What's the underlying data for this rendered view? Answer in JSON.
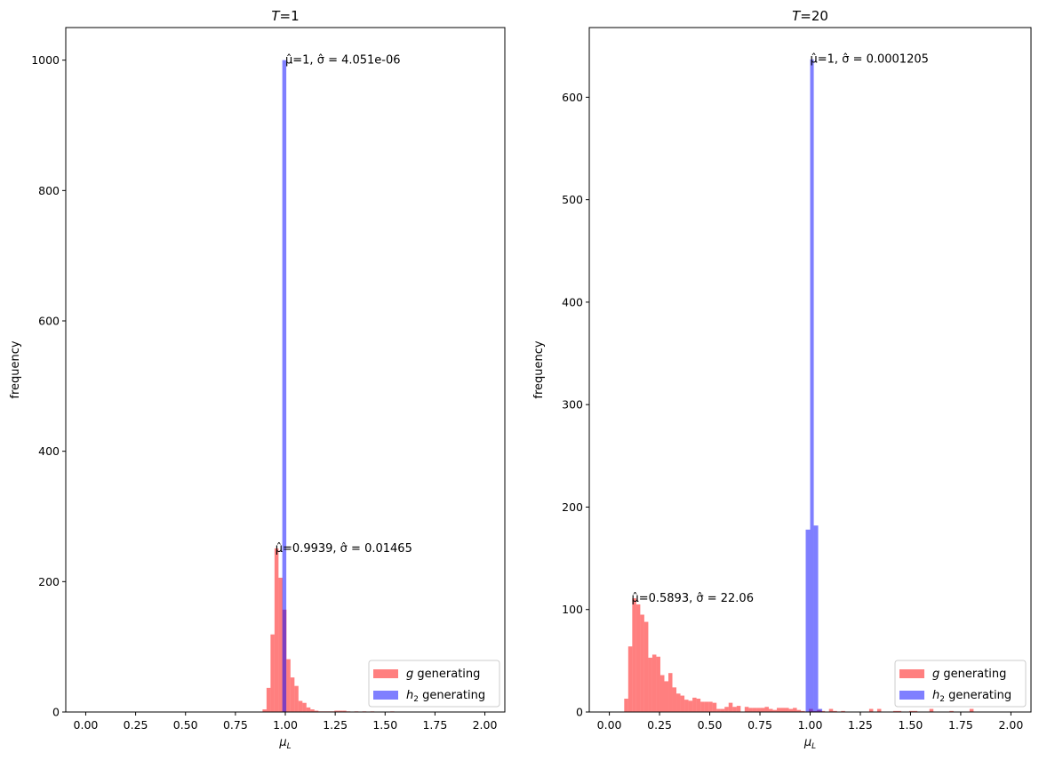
{
  "colors": {
    "g": "rgba(255,0,0,0.5)",
    "h2": "rgba(0,0,255,0.5)"
  },
  "chart_data": [
    {
      "type": "bar",
      "title_var": "T",
      "title_val": "=1",
      "xlabel_sym": "μ",
      "xlabel_sub": "L",
      "ylabel": "frequency",
      "xlim": [
        -0.1,
        2.1
      ],
      "ylim": [
        0,
        1050
      ],
      "xticks": [
        0,
        0.25,
        0.5,
        0.75,
        1.0,
        1.25,
        1.5,
        1.75,
        2.0
      ],
      "xtick_labels": [
        "0.00",
        "0.25",
        "0.50",
        "0.75",
        "1.00",
        "1.25",
        "1.50",
        "1.75",
        "2.00"
      ],
      "yticks": [
        0,
        200,
        400,
        600,
        800,
        1000
      ],
      "ytick_labels": [
        "0",
        "200",
        "400",
        "600",
        "800",
        "1000"
      ],
      "legend": {
        "position": "lower-right",
        "entries": [
          {
            "sym": "g",
            "sub": "",
            "text": " generating",
            "series": "g"
          },
          {
            "sym": "h",
            "sub": "2",
            "text": " generating",
            "series": "h2"
          }
        ]
      },
      "series": [
        {
          "name": "g generating",
          "color_key": "g",
          "bin_start": 0.886,
          "bin_width": 0.02,
          "counts": [
            4,
            37,
            119,
            251,
            206,
            157,
            81,
            53,
            40,
            17,
            14,
            7,
            4,
            2,
            1,
            1,
            1,
            1,
            2,
            2,
            2,
            1,
            0,
            1,
            0,
            1,
            0,
            1,
            0,
            0,
            0,
            0,
            1
          ]
        },
        {
          "name": "h2 generating",
          "color_key": "h2",
          "bins": [
            [
              0.985,
              1.005,
              1000
            ]
          ]
        }
      ],
      "annotations": [
        {
          "x": 1.0,
          "y": 1000,
          "text": "μ̂=1, σ̂ = 4.051e-06"
        },
        {
          "x": 0.95,
          "y": 251,
          "text": "μ̂=0.9939, σ̂ = 0.01465"
        }
      ]
    },
    {
      "type": "bar",
      "title_var": "T",
      "title_val": "=20",
      "xlabel_sym": "μ",
      "xlabel_sub": "L",
      "ylabel": "frequency",
      "xlim": [
        -0.1,
        2.1
      ],
      "ylim": [
        0,
        668
      ],
      "xticks": [
        0,
        0.25,
        0.5,
        0.75,
        1.0,
        1.25,
        1.5,
        1.75,
        2.0
      ],
      "xtick_labels": [
        "0.00",
        "0.25",
        "0.50",
        "0.75",
        "1.00",
        "1.25",
        "1.50",
        "1.75",
        "2.00"
      ],
      "yticks": [
        0,
        100,
        200,
        300,
        400,
        500,
        600
      ],
      "ytick_labels": [
        "0",
        "100",
        "200",
        "300",
        "400",
        "500",
        "600"
      ],
      "legend": {
        "position": "lower-right",
        "entries": [
          {
            "sym": "g",
            "sub": "",
            "text": " generating",
            "series": "g"
          },
          {
            "sym": "h",
            "sub": "2",
            "text": " generating",
            "series": "h2"
          }
        ]
      },
      "series": [
        {
          "name": "g generating",
          "color_key": "g",
          "bin_start": 0.074,
          "bin_width": 0.02,
          "counts": [
            13,
            64,
            111,
            105,
            95,
            88,
            53,
            56,
            54,
            36,
            30,
            38,
            24,
            18,
            16,
            12,
            11,
            14,
            13,
            10,
            10,
            10,
            9,
            3,
            3,
            5,
            9,
            5,
            6,
            0,
            5,
            4,
            4,
            4,
            4,
            5,
            3,
            2,
            4,
            4,
            4,
            3,
            4,
            2,
            1,
            0,
            3,
            1,
            2,
            1,
            0,
            3,
            1,
            0,
            1,
            0,
            0,
            0,
            0,
            0,
            0,
            3,
            0,
            3,
            0,
            0,
            0,
            1,
            1,
            0,
            0,
            1,
            1,
            0,
            0,
            0,
            3,
            0,
            0,
            0,
            0,
            1,
            0,
            0,
            0,
            0,
            3,
            0
          ]
        },
        {
          "name": "h2 generating",
          "color_key": "h2",
          "bins": [
            [
              0.978,
              1.0,
              178
            ],
            [
              1.0,
              1.018,
              637
            ],
            [
              1.018,
              1.04,
              182
            ],
            [
              1.04,
              1.06,
              3
            ]
          ]
        }
      ],
      "annotations": [
        {
          "x": 1.0,
          "y": 637,
          "text": "μ̂=1, σ̂ = 0.0001205"
        },
        {
          "x": 0.11,
          "y": 111,
          "text": "μ̂=0.5893, σ̂ = 22.06"
        }
      ]
    }
  ]
}
